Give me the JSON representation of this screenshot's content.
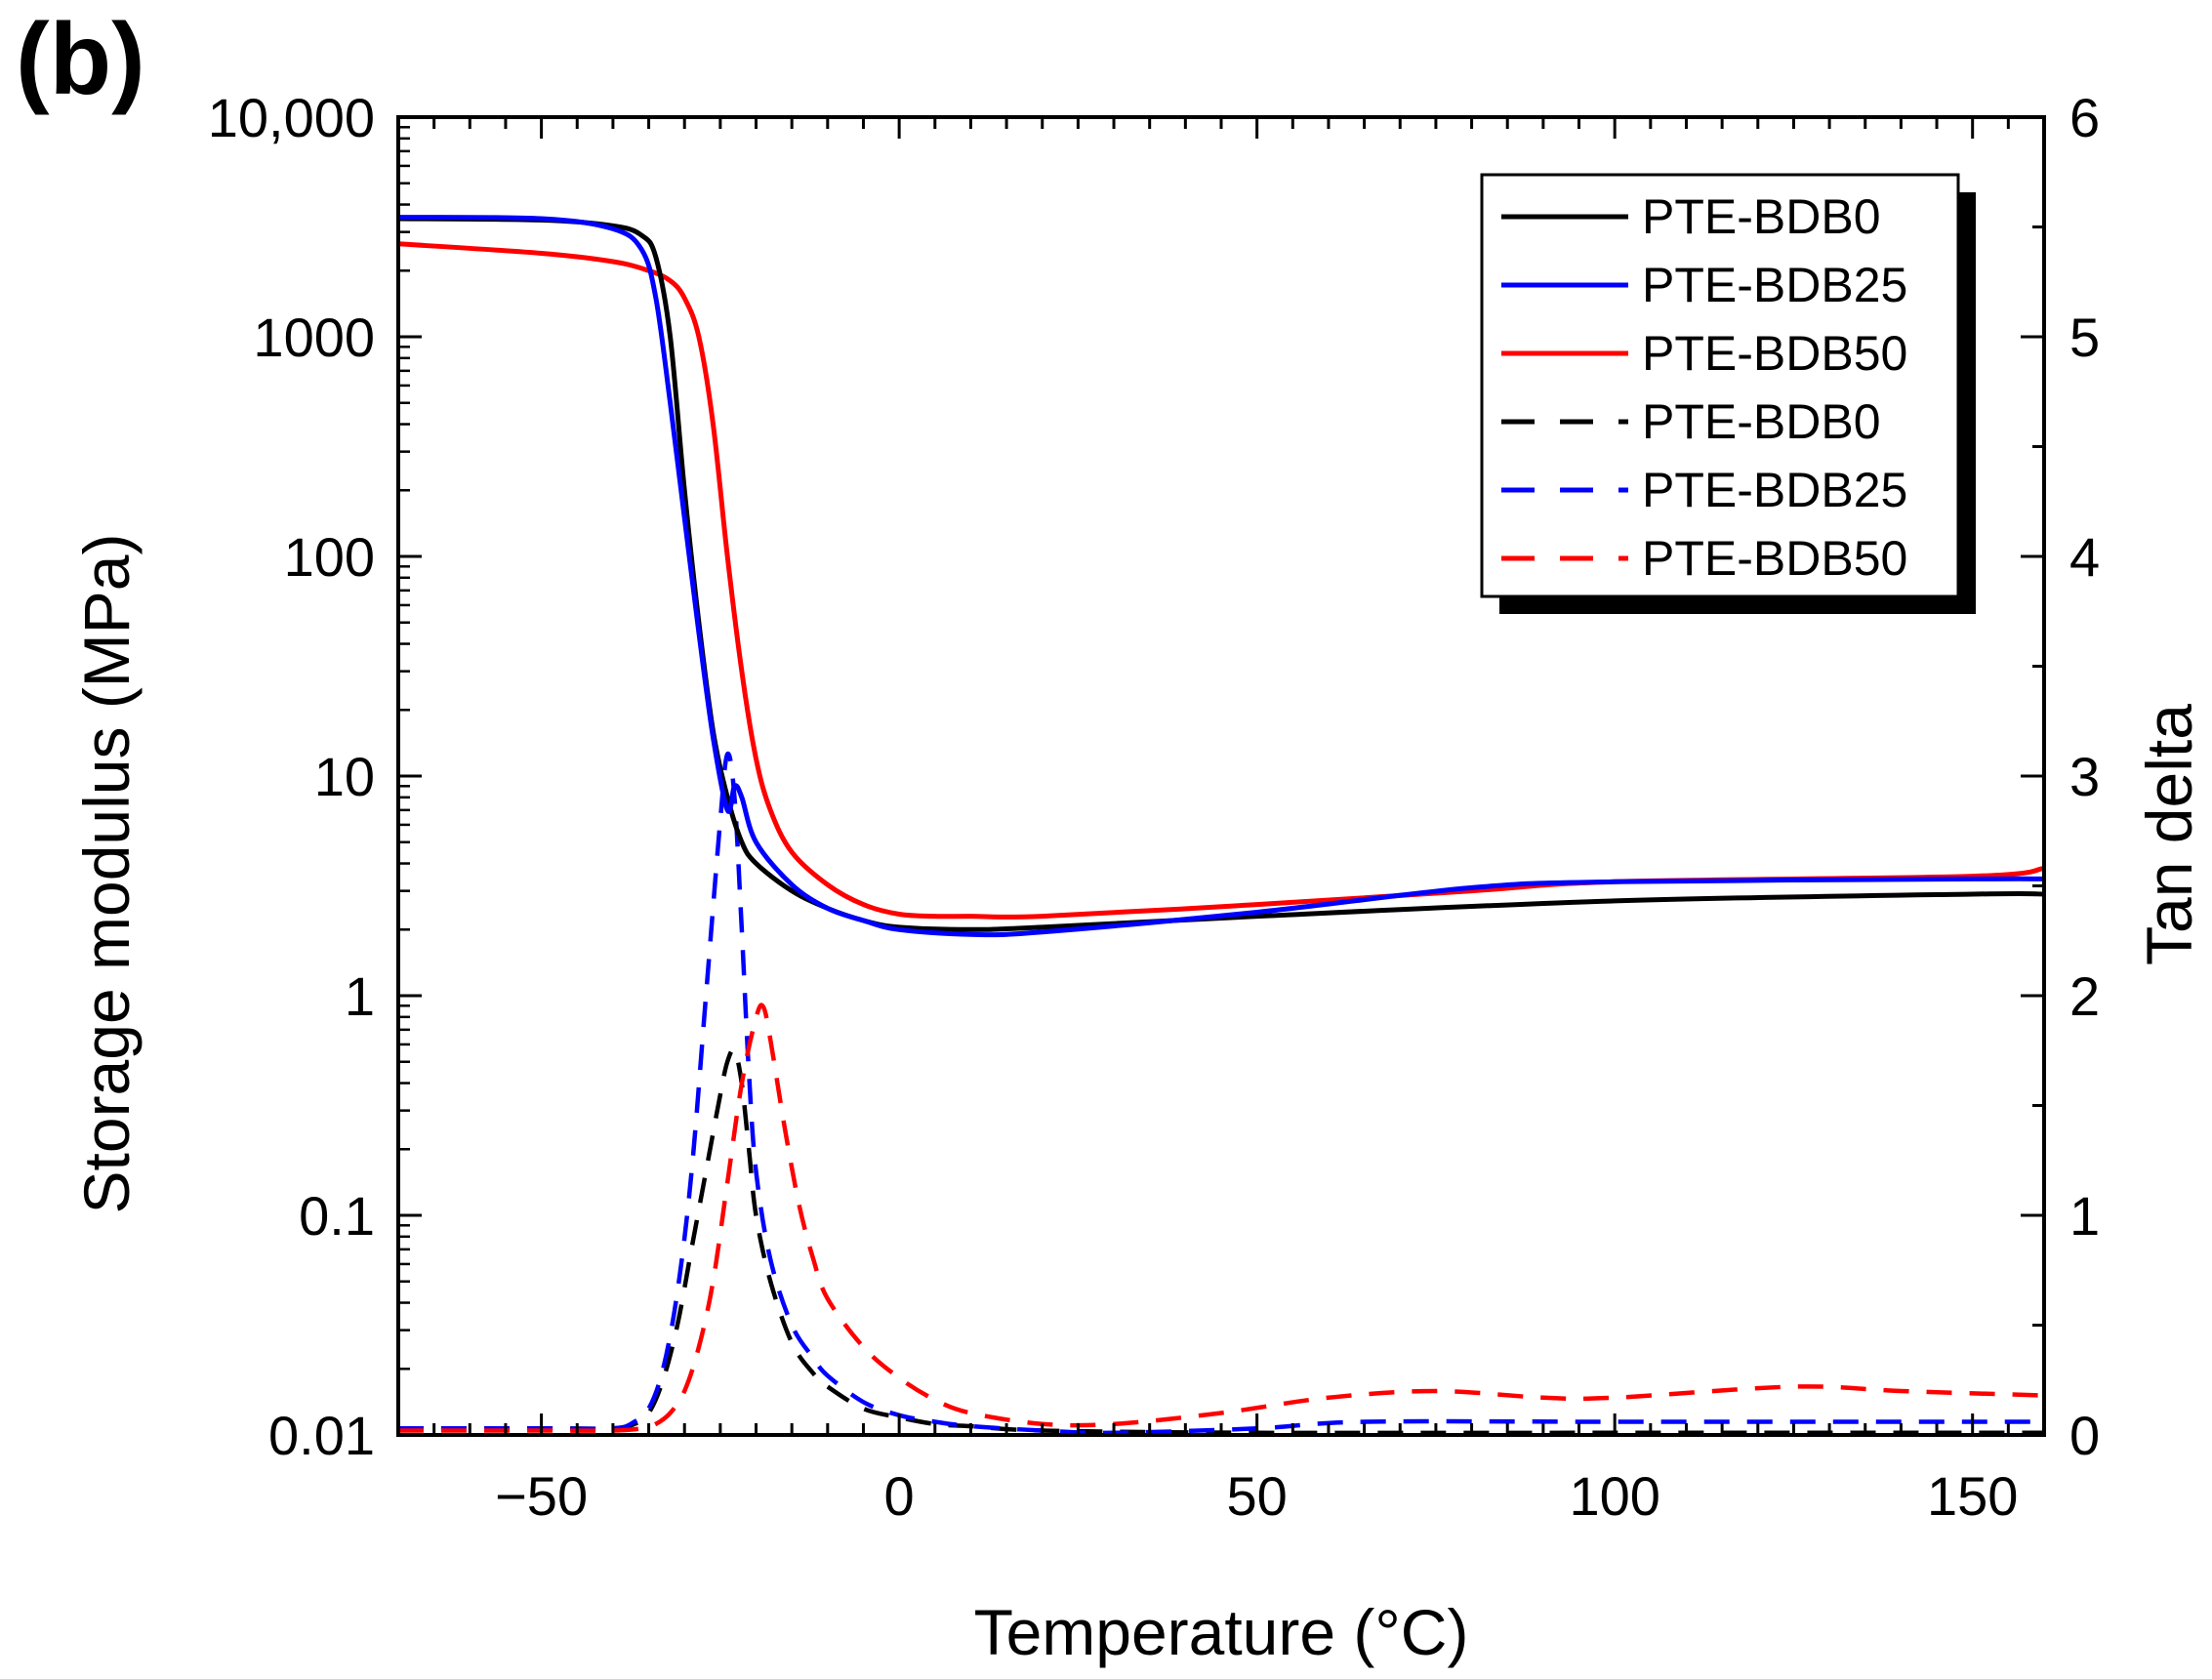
{
  "panel_label": "(b)",
  "chart_data": {
    "type": "line",
    "title": "",
    "xlabel": "Temperature (°C)",
    "ylabel": "Storage modulus (MPa)",
    "y2label": "Tan delta",
    "xlim": [
      -70,
      160
    ],
    "ylim": [
      0.01,
      10000
    ],
    "yscale": "log",
    "y2lim": [
      0,
      6
    ],
    "x_ticks": [
      -50,
      0,
      50,
      100,
      150
    ],
    "x_tick_labels": [
      "−50",
      "0",
      "50",
      "100",
      "150"
    ],
    "y_ticks": [
      0.01,
      0.1,
      1,
      10,
      100,
      1000,
      10000
    ],
    "y_tick_labels": [
      "0.01",
      "0.1",
      "1",
      "10",
      "100",
      "1000",
      "10,000"
    ],
    "y2_ticks": [
      0,
      1,
      2,
      3,
      4,
      5,
      6
    ],
    "y2_tick_labels": [
      "0",
      "1",
      "2",
      "3",
      "4",
      "5",
      "6"
    ],
    "legend_position": "top-right",
    "series": [
      {
        "name": "PTE-BDB0",
        "axis": "left",
        "style": "solid",
        "color": "#000000",
        "x": [
          -70,
          -50,
          -40,
          -36,
          -34,
          -32,
          -30,
          -28,
          -26,
          -24,
          -22,
          -20,
          -15,
          -10,
          -5,
          0,
          10,
          20,
          50,
          100,
          150,
          160
        ],
        "y": [
          3450,
          3400,
          3200,
          2900,
          2300,
          1000,
          200,
          50,
          16,
          8,
          5,
          4,
          3,
          2.5,
          2.2,
          2.05,
          2.0,
          2.05,
          2.3,
          2.7,
          2.9,
          2.9
        ]
      },
      {
        "name": "PTE-BDB25",
        "axis": "left",
        "style": "solid",
        "color": "#0000ff",
        "x": [
          -70,
          -50,
          -40,
          -36,
          -34,
          -32,
          -30,
          -28,
          -26,
          -24,
          -23,
          -22,
          -20,
          -15,
          -10,
          -5,
          0,
          10,
          20,
          50,
          80,
          100,
          150,
          160
        ],
        "y": [
          3500,
          3450,
          3100,
          2500,
          1500,
          500,
          150,
          45,
          15,
          7,
          9,
          8,
          5,
          3.2,
          2.5,
          2.2,
          2.0,
          1.9,
          1.95,
          2.4,
          3.1,
          3.3,
          3.4,
          3.4
        ]
      },
      {
        "name": "PTE-BDB50",
        "axis": "left",
        "style": "solid",
        "color": "#ff0000",
        "x": [
          -70,
          -50,
          -40,
          -35,
          -32,
          -30,
          -28,
          -26,
          -24,
          -22,
          -20,
          -18,
          -15,
          -10,
          -5,
          0,
          5,
          10,
          20,
          50,
          80,
          100,
          150,
          160
        ],
        "y": [
          2650,
          2400,
          2200,
          2000,
          1800,
          1500,
          1000,
          400,
          100,
          30,
          12,
          7,
          4.5,
          3.2,
          2.6,
          2.35,
          2.3,
          2.3,
          2.3,
          2.6,
          3.0,
          3.3,
          3.5,
          3.8
        ]
      },
      {
        "name": "PTE-BDB0",
        "axis": "right",
        "style": "dashed",
        "color": "#000000",
        "x": [
          -70,
          -50,
          -40,
          -37,
          -35,
          -33,
          -31,
          -29,
          -27,
          -25,
          -24,
          -23,
          -22,
          -21,
          -20,
          -18,
          -15,
          -12,
          -10,
          -5,
          0,
          5,
          10,
          20,
          50,
          100,
          150,
          160
        ],
        "y": [
          0.03,
          0.03,
          0.03,
          0.05,
          0.1,
          0.25,
          0.5,
          0.85,
          1.2,
          1.55,
          1.7,
          1.75,
          1.6,
          1.3,
          1.0,
          0.7,
          0.42,
          0.28,
          0.22,
          0.12,
          0.08,
          0.05,
          0.04,
          0.02,
          0.01,
          0.01,
          0.01,
          0.01
        ]
      },
      {
        "name": "PTE-BDB25",
        "axis": "right",
        "style": "dashed",
        "color": "#0000ff",
        "x": [
          -70,
          -50,
          -40,
          -37,
          -35,
          -33,
          -31,
          -29,
          -27,
          -25,
          -24,
          -23,
          -22,
          -21,
          -20,
          -18,
          -15,
          -12,
          -10,
          -5,
          0,
          5,
          10,
          20,
          30,
          50,
          65,
          100,
          150,
          160
        ],
        "y": [
          0.03,
          0.03,
          0.03,
          0.06,
          0.12,
          0.3,
          0.65,
          1.2,
          2.0,
          2.8,
          3.1,
          2.9,
          2.3,
          1.65,
          1.2,
          0.8,
          0.5,
          0.35,
          0.27,
          0.15,
          0.09,
          0.06,
          0.04,
          0.02,
          0.01,
          0.03,
          0.06,
          0.06,
          0.06,
          0.06
        ]
      },
      {
        "name": "PTE-BDB50",
        "axis": "right",
        "style": "dashed",
        "color": "#ff0000",
        "x": [
          -70,
          -50,
          -40,
          -36,
          -34,
          -32,
          -30,
          -28,
          -26,
          -24,
          -22,
          -20,
          -19,
          -18,
          -16,
          -14,
          -12,
          -10,
          -5,
          0,
          5,
          10,
          20,
          30,
          45,
          60,
          75,
          90,
          100,
          125,
          140,
          160
        ],
        "y": [
          0.02,
          0.02,
          0.02,
          0.03,
          0.05,
          0.1,
          0.2,
          0.4,
          0.7,
          1.15,
          1.6,
          1.9,
          1.95,
          1.8,
          1.4,
          1.05,
          0.8,
          0.62,
          0.4,
          0.26,
          0.16,
          0.1,
          0.05,
          0.05,
          0.1,
          0.17,
          0.2,
          0.17,
          0.17,
          0.22,
          0.2,
          0.18
        ]
      }
    ]
  }
}
